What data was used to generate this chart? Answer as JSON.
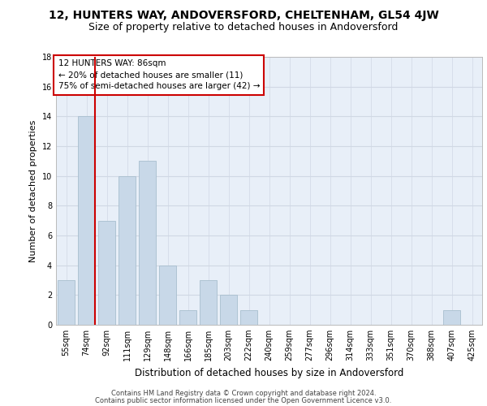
{
  "title1": "12, HUNTERS WAY, ANDOVERSFORD, CHELTENHAM, GL54 4JW",
  "title2": "Size of property relative to detached houses in Andoversford",
  "xlabel": "Distribution of detached houses by size in Andoversford",
  "ylabel": "Number of detached properties",
  "footnote1": "Contains HM Land Registry data © Crown copyright and database right 2024.",
  "footnote2": "Contains public sector information licensed under the Open Government Licence v3.0.",
  "annotation_line1": "12 HUNTERS WAY: 86sqm",
  "annotation_line2": "← 20% of detached houses are smaller (11)",
  "annotation_line3": "75% of semi-detached houses are larger (42) →",
  "bar_color": "#c8d8e8",
  "bar_edge_color": "#a8bece",
  "marker_color": "#cc0000",
  "categories": [
    "55sqm",
    "74sqm",
    "92sqm",
    "111sqm",
    "129sqm",
    "148sqm",
    "166sqm",
    "185sqm",
    "203sqm",
    "222sqm",
    "240sqm",
    "259sqm",
    "277sqm",
    "296sqm",
    "314sqm",
    "333sqm",
    "351sqm",
    "370sqm",
    "388sqm",
    "407sqm",
    "425sqm"
  ],
  "values": [
    3,
    14,
    7,
    10,
    11,
    4,
    1,
    3,
    2,
    1,
    0,
    0,
    0,
    0,
    0,
    0,
    0,
    0,
    0,
    1,
    0
  ],
  "ylim": [
    0,
    18
  ],
  "yticks": [
    0,
    2,
    4,
    6,
    8,
    10,
    12,
    14,
    16,
    18
  ],
  "grid_color": "#d0d8e4",
  "background_color": "#e8eff8",
  "fig_background": "#ffffff",
  "title_fontsize": 10,
  "subtitle_fontsize": 9,
  "tick_fontsize": 7,
  "ylabel_fontsize": 8,
  "xlabel_fontsize": 8.5,
  "footnote_fontsize": 6,
  "annotation_fontsize": 7.5
}
